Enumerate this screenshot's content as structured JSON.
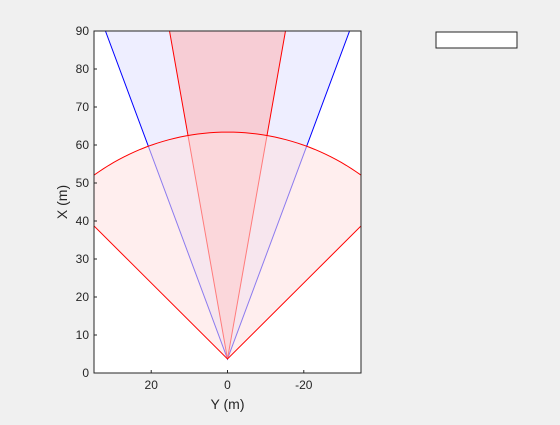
{
  "chart_data": {
    "type": "area",
    "xlabel": "Y (m)",
    "ylabel": "X (m)",
    "xlim": [
      35,
      -35
    ],
    "ylim": [
      0,
      90
    ],
    "x_direction": "reversed",
    "grid": false,
    "x_ticks": [
      20,
      0,
      -20
    ],
    "x_tick_labels": [
      "20",
      "0",
      "-20"
    ],
    "y_ticks": [
      0,
      10,
      20,
      30,
      40,
      50,
      60,
      70,
      80,
      90
    ],
    "y_tick_labels": [
      "0",
      "10",
      "20",
      "30",
      "40",
      "50",
      "60",
      "70",
      "80",
      "90"
    ],
    "legend": {
      "placement": "top-right, outside",
      "entries": []
    },
    "series": [
      {
        "kind": "wedge",
        "color": "#0000ff",
        "fill": "#e0e0ff",
        "apex": [
          0,
          3.7
        ],
        "points": [
          [
            32,
            90
          ],
          [
            0,
            3.7
          ],
          [
            -32,
            90
          ]
        ]
      },
      {
        "kind": "wedge",
        "color": "#ff0000",
        "fill": "#ffb3b3",
        "apex": [
          0,
          3.7
        ],
        "points": [
          [
            15.2,
            90
          ],
          [
            0,
            3.7
          ],
          [
            -15.2,
            90
          ]
        ]
      },
      {
        "kind": "sector",
        "color": "#ff0000",
        "fill": "#ffe0e0",
        "apex": [
          0,
          3.7
        ],
        "radius": 59.7,
        "half_angle_deg": 45
      }
    ]
  }
}
